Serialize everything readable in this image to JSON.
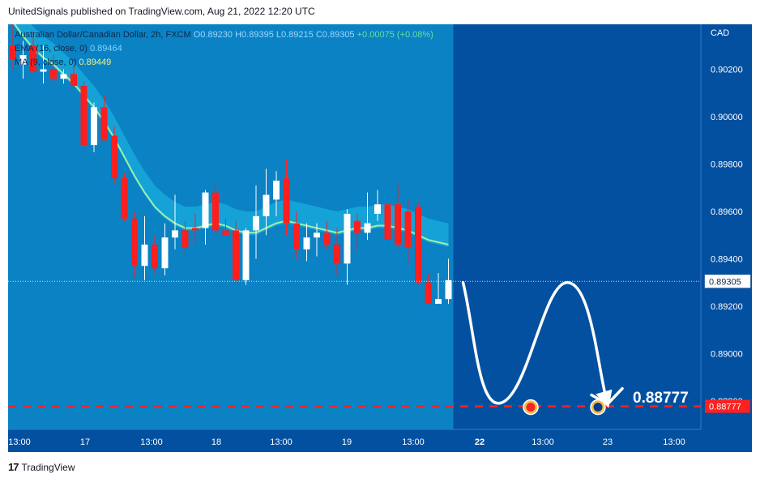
{
  "header": {
    "publisher_text": "UnitedSignals published on TradingView.com, Aug 21, 2022 12:20 UTC"
  },
  "legend": {
    "symbol": "Australian Dollar/Canadian Dollar, 2h, FXCM",
    "open": "O0.89230",
    "high": "H0.89395",
    "low": "L0.89215",
    "close": "C0.89305",
    "change": "+0.00075 (+0.08%)",
    "ema_label": "EMA (16, close, 0)",
    "ema_value": "0.89464",
    "ma_label": "MA (9, close, 0)",
    "ma_value": "0.89449"
  },
  "footer": {
    "brand": "TradingView",
    "logo_mark": "17"
  },
  "colors": {
    "plot_bg": "#0450a0",
    "history_bg": "#0a82c4",
    "band": "#16a5d9",
    "ema": "#9ef0a8",
    "up_candle": "#ffffff",
    "down_candle": "#ff1e1e",
    "target_line": "#ff2020",
    "axis_text": "#ffffff"
  },
  "chart_data": {
    "type": "candlestick",
    "symbol": "AUDCAD",
    "timeframe": "2h",
    "currency": "CAD",
    "y_axis": {
      "ticks": [
        0.902,
        0.9,
        0.898,
        0.896,
        0.894,
        0.892,
        0.89,
        0.888
      ],
      "tick_labels": [
        "0.90200",
        "0.90000",
        "0.89800",
        "0.89600",
        "0.89400",
        "0.89200",
        "0.89000",
        "0.88800"
      ],
      "range": [
        0.8868,
        0.9039
      ]
    },
    "x_axis": {
      "labels": [
        "13:00",
        "17",
        "13:00",
        "18",
        "13:00",
        "19",
        "13:00",
        "22",
        "13:00",
        "23",
        "13:00"
      ],
      "bold": [
        false,
        false,
        false,
        false,
        false,
        false,
        false,
        true,
        false,
        false,
        false
      ]
    },
    "last_price": 0.89305,
    "last_price_label": "0.89305",
    "target_price": 0.88777,
    "target_label": "0.88777",
    "candles": [
      {
        "o": 0.903,
        "h": 0.904,
        "l": 0.902,
        "c": 0.9024
      },
      {
        "o": 0.9022,
        "h": 0.9032,
        "l": 0.9016,
        "c": 0.9026
      },
      {
        "o": 0.903,
        "h": 0.9036,
        "l": 0.9018,
        "c": 0.9019
      },
      {
        "o": 0.9019,
        "h": 0.903,
        "l": 0.9014,
        "c": 0.902
      },
      {
        "o": 0.902,
        "h": 0.9026,
        "l": 0.9014,
        "c": 0.9016
      },
      {
        "o": 0.9016,
        "h": 0.902,
        "l": 0.9014,
        "c": 0.9018
      },
      {
        "o": 0.9018,
        "h": 0.9022,
        "l": 0.9012,
        "c": 0.9013
      },
      {
        "o": 0.9013,
        "h": 0.9015,
        "l": 0.8986,
        "c": 0.8988
      },
      {
        "o": 0.8988,
        "h": 0.9006,
        "l": 0.8985,
        "c": 0.9004
      },
      {
        "o": 0.9004,
        "h": 0.9009,
        "l": 0.899,
        "c": 0.899
      },
      {
        "o": 0.8992,
        "h": 0.8996,
        "l": 0.8972,
        "c": 0.8974
      },
      {
        "o": 0.8974,
        "h": 0.8976,
        "l": 0.8956,
        "c": 0.8957
      },
      {
        "o": 0.8957,
        "h": 0.896,
        "l": 0.8932,
        "c": 0.8937
      },
      {
        "o": 0.8937,
        "h": 0.8958,
        "l": 0.8931,
        "c": 0.8946
      },
      {
        "o": 0.8946,
        "h": 0.895,
        "l": 0.8934,
        "c": 0.8936
      },
      {
        "o": 0.8936,
        "h": 0.8955,
        "l": 0.8933,
        "c": 0.8949
      },
      {
        "o": 0.8949,
        "h": 0.8967,
        "l": 0.8944,
        "c": 0.8952
      },
      {
        "o": 0.8952,
        "h": 0.8956,
        "l": 0.8942,
        "c": 0.8945
      },
      {
        "o": 0.8953,
        "h": 0.8959,
        "l": 0.8946,
        "c": 0.8952
      },
      {
        "o": 0.8953,
        "h": 0.8969,
        "l": 0.8946,
        "c": 0.8968
      },
      {
        "o": 0.8968,
        "h": 0.8972,
        "l": 0.895,
        "c": 0.8952
      },
      {
        "o": 0.8952,
        "h": 0.8957,
        "l": 0.8946,
        "c": 0.895
      },
      {
        "o": 0.8952,
        "h": 0.8956,
        "l": 0.893,
        "c": 0.8931
      },
      {
        "o": 0.8931,
        "h": 0.8953,
        "l": 0.8929,
        "c": 0.8952
      },
      {
        "o": 0.8952,
        "h": 0.8971,
        "l": 0.894,
        "c": 0.8958
      },
      {
        "o": 0.8958,
        "h": 0.8978,
        "l": 0.895,
        "c": 0.8967
      },
      {
        "o": 0.8965,
        "h": 0.8977,
        "l": 0.8958,
        "c": 0.8973
      },
      {
        "o": 0.8974,
        "h": 0.8982,
        "l": 0.895,
        "c": 0.8955
      },
      {
        "o": 0.8955,
        "h": 0.896,
        "l": 0.894,
        "c": 0.8944
      },
      {
        "o": 0.8944,
        "h": 0.8955,
        "l": 0.8939,
        "c": 0.8949
      },
      {
        "o": 0.8949,
        "h": 0.8955,
        "l": 0.8941,
        "c": 0.8951
      },
      {
        "o": 0.8951,
        "h": 0.8956,
        "l": 0.8944,
        "c": 0.8946
      },
      {
        "o": 0.8946,
        "h": 0.8953,
        "l": 0.8933,
        "c": 0.8938
      },
      {
        "o": 0.8938,
        "h": 0.8961,
        "l": 0.8929,
        "c": 0.8959
      },
      {
        "o": 0.8956,
        "h": 0.8959,
        "l": 0.8943,
        "c": 0.8951
      },
      {
        "o": 0.8951,
        "h": 0.8968,
        "l": 0.8948,
        "c": 0.8955
      },
      {
        "o": 0.8959,
        "h": 0.8969,
        "l": 0.8956,
        "c": 0.8963
      },
      {
        "o": 0.8963,
        "h": 0.8969,
        "l": 0.8945,
        "c": 0.8948
      },
      {
        "o": 0.8963,
        "h": 0.8972,
        "l": 0.8945,
        "c": 0.8946
      },
      {
        "o": 0.896,
        "h": 0.8965,
        "l": 0.8938,
        "c": 0.8945
      },
      {
        "o": 0.8962,
        "h": 0.8964,
        "l": 0.8929,
        "c": 0.893
      },
      {
        "o": 0.893,
        "h": 0.8934,
        "l": 0.8921,
        "c": 0.8921
      },
      {
        "o": 0.8921,
        "h": 0.8934,
        "l": 0.8921,
        "c": 0.8923
      },
      {
        "o": 0.8923,
        "h": 0.894,
        "l": 0.8921,
        "c": 0.8931
      }
    ],
    "ema_16": [
      0.904,
      0.9034,
      0.9029,
      0.9025,
      0.9022,
      0.9018,
      0.9014,
      0.9009,
      0.9004,
      0.8998,
      0.8991,
      0.8983,
      0.8975,
      0.8968,
      0.8962,
      0.8958,
      0.8955,
      0.8953,
      0.8953,
      0.8954,
      0.8955,
      0.8954,
      0.8952,
      0.8951,
      0.8951,
      0.8953,
      0.8955,
      0.8956,
      0.8955,
      0.8954,
      0.8953,
      0.8952,
      0.8951,
      0.8952,
      0.8953,
      0.8953,
      0.8954,
      0.8954,
      0.8953,
      0.8952,
      0.895,
      0.8948,
      0.8947,
      0.8946
    ],
    "projection": [
      {
        "label": "22",
        "price": 0.893
      },
      {
        "price": 0.8879
      },
      {
        "price": 0.893
      },
      {
        "label": "23",
        "price": 0.88777
      }
    ],
    "events": [
      {
        "currency": "CAD",
        "icon": "canada-flag-icon"
      },
      {
        "currency": "AUD",
        "icon": "australia-flag-icon"
      }
    ]
  }
}
